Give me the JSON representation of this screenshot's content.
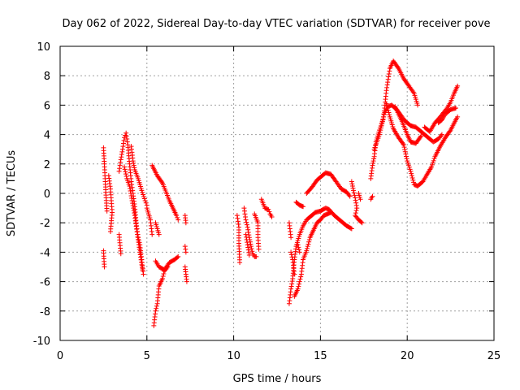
{
  "chart_data": {
    "type": "scatter",
    "title": "Day 062 of 2022, Sidereal Day-to-day VTEC variation (SDTVAR) for receiver pove",
    "xlabel": "GPS time / hours",
    "ylabel": "SDTVAR / TECUs",
    "xlim": [
      0,
      25
    ],
    "ylim": [
      -10,
      10
    ],
    "xticks": [
      "0",
      "5",
      "10",
      "15",
      "20",
      "25"
    ],
    "yticks": [
      "-10",
      "-8",
      "-6",
      "-4",
      "-2",
      "0",
      "2",
      "4",
      "6",
      "8",
      "10"
    ],
    "grid": true,
    "marker": "+",
    "color": "#ff0000",
    "series": [
      {
        "name": "SDTVAR",
        "paths": [
          [
            [
              2.5,
              3.1
            ],
            [
              2.55,
              2.0
            ],
            [
              2.6,
              0.8
            ],
            [
              2.65,
              -0.3
            ],
            [
              2.7,
              -1.2
            ]
          ],
          [
            [
              2.5,
              -3.9
            ],
            [
              2.55,
              -5.0
            ]
          ],
          [
            [
              2.8,
              1.2
            ],
            [
              2.9,
              0.3
            ],
            [
              3.0,
              -1.3
            ],
            [
              2.9,
              -2.6
            ]
          ],
          [
            [
              3.4,
              -2.8
            ],
            [
              3.5,
              -4.1
            ]
          ],
          [
            [
              3.4,
              1.5
            ],
            [
              3.5,
              2.3
            ],
            [
              3.6,
              3.0
            ],
            [
              3.7,
              3.8
            ],
            [
              3.8,
              4.1
            ],
            [
              3.9,
              3.3
            ],
            [
              4.0,
              2.0
            ],
            [
              4.1,
              0.8
            ],
            [
              4.2,
              0.0
            ],
            [
              4.3,
              -0.9
            ],
            [
              4.4,
              -2.2
            ],
            [
              4.5,
              -3.0
            ],
            [
              4.6,
              -3.5
            ],
            [
              4.7,
              -4.5
            ],
            [
              4.8,
              -5.5
            ]
          ],
          [
            [
              4.1,
              3.2
            ],
            [
              4.2,
              2.2
            ],
            [
              4.3,
              1.6
            ],
            [
              4.5,
              1.0
            ],
            [
              4.7,
              0.2
            ],
            [
              4.9,
              -0.5
            ],
            [
              5.0,
              -0.8
            ]
          ],
          [
            [
              3.7,
              1.8
            ],
            [
              3.85,
              1.0
            ],
            [
              4.0,
              0.5
            ],
            [
              4.15,
              -0.5
            ],
            [
              4.3,
              -1.5
            ],
            [
              4.45,
              -2.8
            ],
            [
              4.6,
              -4.0
            ],
            [
              4.75,
              -5.2
            ]
          ],
          [
            [
              5.3,
              1.9
            ],
            [
              5.6,
              1.2
            ],
            [
              5.9,
              0.7
            ],
            [
              6.1,
              0.1
            ],
            [
              6.3,
              -0.5
            ],
            [
              6.5,
              -1.0
            ],
            [
              6.7,
              -1.5
            ],
            [
              6.8,
              -1.8
            ]
          ],
          [
            [
              5.0,
              -1.0
            ],
            [
              5.2,
              -1.8
            ],
            [
              5.3,
              -2.8
            ]
          ],
          [
            [
              5.5,
              -2.0
            ],
            [
              5.6,
              -2.4
            ],
            [
              5.7,
              -2.8
            ]
          ],
          [
            [
              5.5,
              -4.6
            ],
            [
              5.7,
              -5.0
            ],
            [
              6.0,
              -5.2
            ],
            [
              6.3,
              -4.7
            ],
            [
              6.6,
              -4.5
            ],
            [
              6.8,
              -4.3
            ]
          ],
          [
            [
              5.4,
              -9.0
            ],
            [
              5.5,
              -8.0
            ],
            [
              5.6,
              -7.5
            ],
            [
              5.7,
              -6.3
            ],
            [
              5.9,
              -5.8
            ],
            [
              6.0,
              -5.3
            ],
            [
              6.2,
              -5.0
            ]
          ],
          [
            [
              7.2,
              -1.5
            ],
            [
              7.25,
              -2.0
            ]
          ],
          [
            [
              7.2,
              -3.6
            ],
            [
              7.25,
              -4.0
            ]
          ],
          [
            [
              7.2,
              -5.0
            ],
            [
              7.25,
              -5.5
            ],
            [
              7.3,
              -6.0
            ]
          ],
          [
            [
              10.2,
              -1.5
            ],
            [
              10.3,
              -2.3
            ],
            [
              10.3,
              -3.4
            ],
            [
              10.35,
              -4.7
            ]
          ],
          [
            [
              10.6,
              -1.0
            ],
            [
              10.7,
              -1.8
            ],
            [
              10.8,
              -2.3
            ],
            [
              10.9,
              -3.0
            ],
            [
              11.0,
              -3.6
            ],
            [
              11.1,
              -4.1
            ],
            [
              11.2,
              -4.3
            ],
            [
              11.3,
              -4.3
            ]
          ],
          [
            [
              10.7,
              -2.8
            ],
            [
              10.8,
              -3.5
            ],
            [
              10.9,
              -4.2
            ]
          ],
          [
            [
              11.2,
              -1.4
            ],
            [
              11.4,
              -2.0
            ],
            [
              11.4,
              -3.0
            ],
            [
              11.45,
              -3.8
            ]
          ],
          [
            [
              11.6,
              -0.4
            ],
            [
              11.8,
              -1.0
            ],
            [
              12.0,
              -1.1
            ],
            [
              12.1,
              -1.4
            ],
            [
              12.2,
              -1.6
            ]
          ],
          [
            [
              13.2,
              -7.5
            ],
            [
              13.3,
              -6.5
            ],
            [
              13.4,
              -5.8
            ],
            [
              13.5,
              -4.5
            ],
            [
              13.6,
              -3.6
            ],
            [
              13.8,
              -2.8
            ],
            [
              14.0,
              -2.2
            ],
            [
              14.2,
              -1.8
            ],
            [
              14.5,
              -1.5
            ],
            [
              14.7,
              -1.3
            ],
            [
              15.0,
              -1.2
            ],
            [
              15.3,
              -1.0
            ],
            [
              15.5,
              -1.1
            ],
            [
              15.8,
              -1.5
            ],
            [
              16.0,
              -1.7
            ],
            [
              16.3,
              -2.0
            ],
            [
              16.5,
              -2.2
            ],
            [
              16.8,
              -2.4
            ]
          ],
          [
            [
              13.5,
              -7.0
            ],
            [
              13.7,
              -6.5
            ],
            [
              13.9,
              -5.5
            ],
            [
              14.0,
              -4.5
            ],
            [
              14.2,
              -3.9
            ],
            [
              14.4,
              -3.0
            ],
            [
              14.6,
              -2.5
            ],
            [
              14.8,
              -2.0
            ],
            [
              15.0,
              -1.8
            ],
            [
              15.2,
              -1.5
            ],
            [
              15.4,
              -1.4
            ],
            [
              15.6,
              -1.3
            ]
          ],
          [
            [
              13.3,
              -4.0
            ],
            [
              13.4,
              -4.5
            ],
            [
              13.5,
              -5.5
            ]
          ],
          [
            [
              13.7,
              -3.5
            ],
            [
              13.8,
              -4.0
            ]
          ],
          [
            [
              13.6,
              -0.6
            ],
            [
              13.8,
              -0.8
            ],
            [
              14.0,
              -0.9
            ]
          ],
          [
            [
              13.2,
              -2.0
            ],
            [
              13.3,
              -3.0
            ]
          ],
          [
            [
              14.2,
              0.0
            ],
            [
              14.5,
              0.4
            ],
            [
              14.8,
              0.9
            ],
            [
              15.1,
              1.2
            ],
            [
              15.3,
              1.4
            ],
            [
              15.6,
              1.3
            ],
            [
              15.9,
              0.8
            ],
            [
              16.2,
              0.3
            ],
            [
              16.5,
              0.1
            ],
            [
              16.7,
              -0.2
            ]
          ],
          [
            [
              16.8,
              0.8
            ],
            [
              16.9,
              0.2
            ],
            [
              17.0,
              -0.3
            ],
            [
              17.1,
              -1.0
            ],
            [
              17.0,
              -1.5
            ],
            [
              17.2,
              -1.8
            ],
            [
              17.4,
              -2.0
            ]
          ],
          [
            [
              17.2,
              0.0
            ],
            [
              17.3,
              -0.4
            ]
          ],
          [
            [
              17.9,
              -0.4
            ],
            [
              18.0,
              -0.2
            ]
          ],
          [
            [
              17.9,
              1.0
            ],
            [
              18.0,
              1.9
            ],
            [
              18.1,
              2.5
            ],
            [
              18.2,
              3.5
            ],
            [
              18.4,
              4.3
            ],
            [
              18.6,
              5.0
            ],
            [
              18.7,
              5.8
            ],
            [
              18.8,
              7.0
            ],
            [
              19.0,
              8.5
            ],
            [
              19.2,
              9.0
            ],
            [
              19.5,
              8.5
            ],
            [
              19.8,
              7.8
            ],
            [
              20.1,
              7.3
            ],
            [
              20.4,
              6.8
            ],
            [
              20.6,
              6.0
            ]
          ],
          [
            [
              18.1,
              3.0
            ],
            [
              18.4,
              4.0
            ],
            [
              18.7,
              5.5
            ],
            [
              18.9,
              5.9
            ],
            [
              19.1,
              6.0
            ],
            [
              19.4,
              5.7
            ],
            [
              19.7,
              5.2
            ],
            [
              19.9,
              4.9
            ],
            [
              20.2,
              4.6
            ],
            [
              20.5,
              4.5
            ],
            [
              20.8,
              4.2
            ],
            [
              21.2,
              3.8
            ],
            [
              21.5,
              3.5
            ],
            [
              21.8,
              3.7
            ],
            [
              22.0,
              4.0
            ]
          ],
          [
            [
              18.8,
              6.1
            ],
            [
              19.0,
              5.2
            ],
            [
              19.2,
              4.4
            ],
            [
              19.5,
              3.8
            ],
            [
              19.8,
              3.3
            ],
            [
              20.0,
              2.2
            ],
            [
              20.2,
              1.5
            ],
            [
              20.4,
              0.6
            ],
            [
              20.6,
              0.5
            ],
            [
              20.9,
              0.8
            ],
            [
              21.1,
              1.2
            ],
            [
              21.4,
              1.8
            ],
            [
              21.6,
              2.5
            ],
            [
              21.9,
              3.2
            ],
            [
              22.2,
              3.8
            ],
            [
              22.5,
              4.3
            ],
            [
              22.8,
              5.0
            ],
            [
              22.9,
              5.2
            ]
          ],
          [
            [
              19.3,
              5.9
            ],
            [
              19.5,
              5.4
            ],
            [
              19.7,
              4.9
            ],
            [
              20.0,
              4.0
            ],
            [
              20.2,
              3.5
            ],
            [
              20.5,
              3.4
            ],
            [
              20.8,
              3.9
            ]
          ],
          [
            [
              21.0,
              4.5
            ],
            [
              21.3,
              4.2
            ],
            [
              21.6,
              4.8
            ],
            [
              21.9,
              5.2
            ],
            [
              22.1,
              5.5
            ],
            [
              22.3,
              5.8
            ],
            [
              22.5,
              6.2
            ],
            [
              22.7,
              6.8
            ],
            [
              22.9,
              7.3
            ]
          ],
          [
            [
              21.8,
              4.8
            ],
            [
              22.0,
              5.0
            ],
            [
              22.2,
              5.4
            ],
            [
              22.5,
              5.7
            ],
            [
              22.8,
              5.8
            ]
          ]
        ]
      }
    ]
  }
}
